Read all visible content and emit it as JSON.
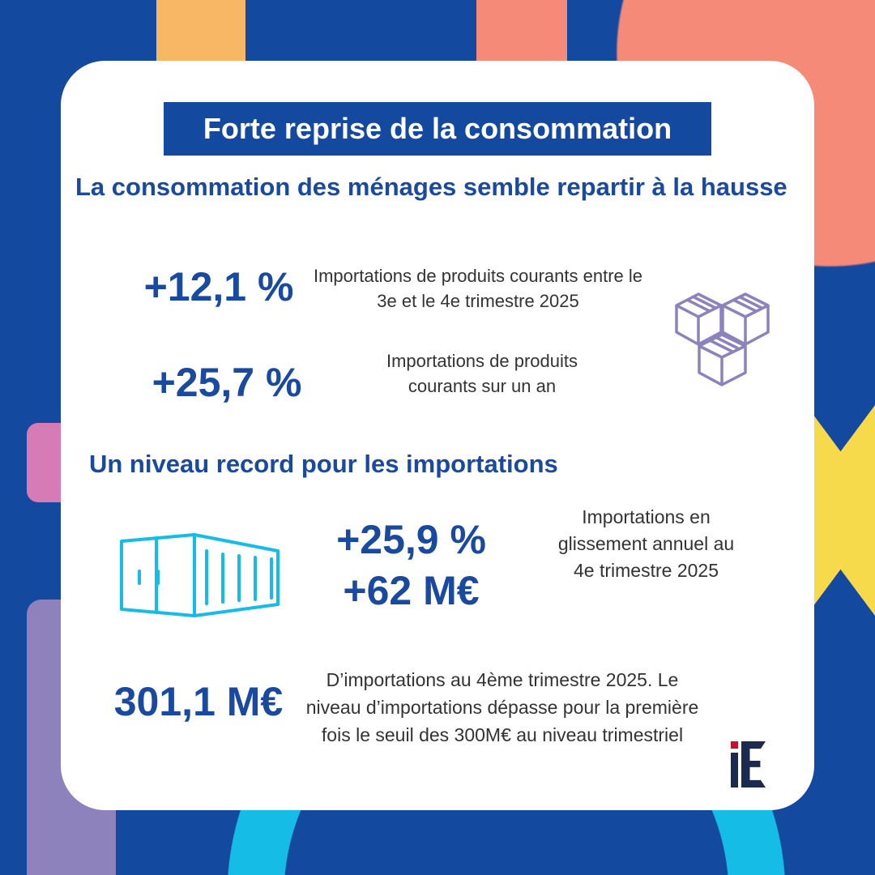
{
  "title": "Forte reprise de la consommation",
  "section1": {
    "heading": "La consommation des ménages semble repartir à la hausse",
    "stats": [
      {
        "value": "+12,1 %",
        "label": "Importations de produits courants entre le 3e et le 4e trimestre 2025"
      },
      {
        "value": "+25,7 %",
        "label": "Importations de produits courants sur un an"
      }
    ],
    "icon": "boxes-icon"
  },
  "section2": {
    "heading": "Un niveau record pour les importations",
    "icon": "container-icon",
    "stat_a": "+25,9 %",
    "stat_b": "+62 M€",
    "stat_label": "Importations en glissement annuel au 4e trimestre 2025",
    "record_value": "301,1 M€",
    "record_label": "D’importations au 4ème trimestre 2025. Le niveau d’importations dépasse pour la première fois le seuil des 300M€ au niveau trimestriel"
  },
  "logo": "iE",
  "colors": {
    "navy": "#1449a0",
    "orange": "#f8b765",
    "salmon": "#f48a77",
    "pink": "#d67bb5",
    "purple": "#8d82bb",
    "yellow": "#f7d94c",
    "cyan": "#14bce6"
  }
}
